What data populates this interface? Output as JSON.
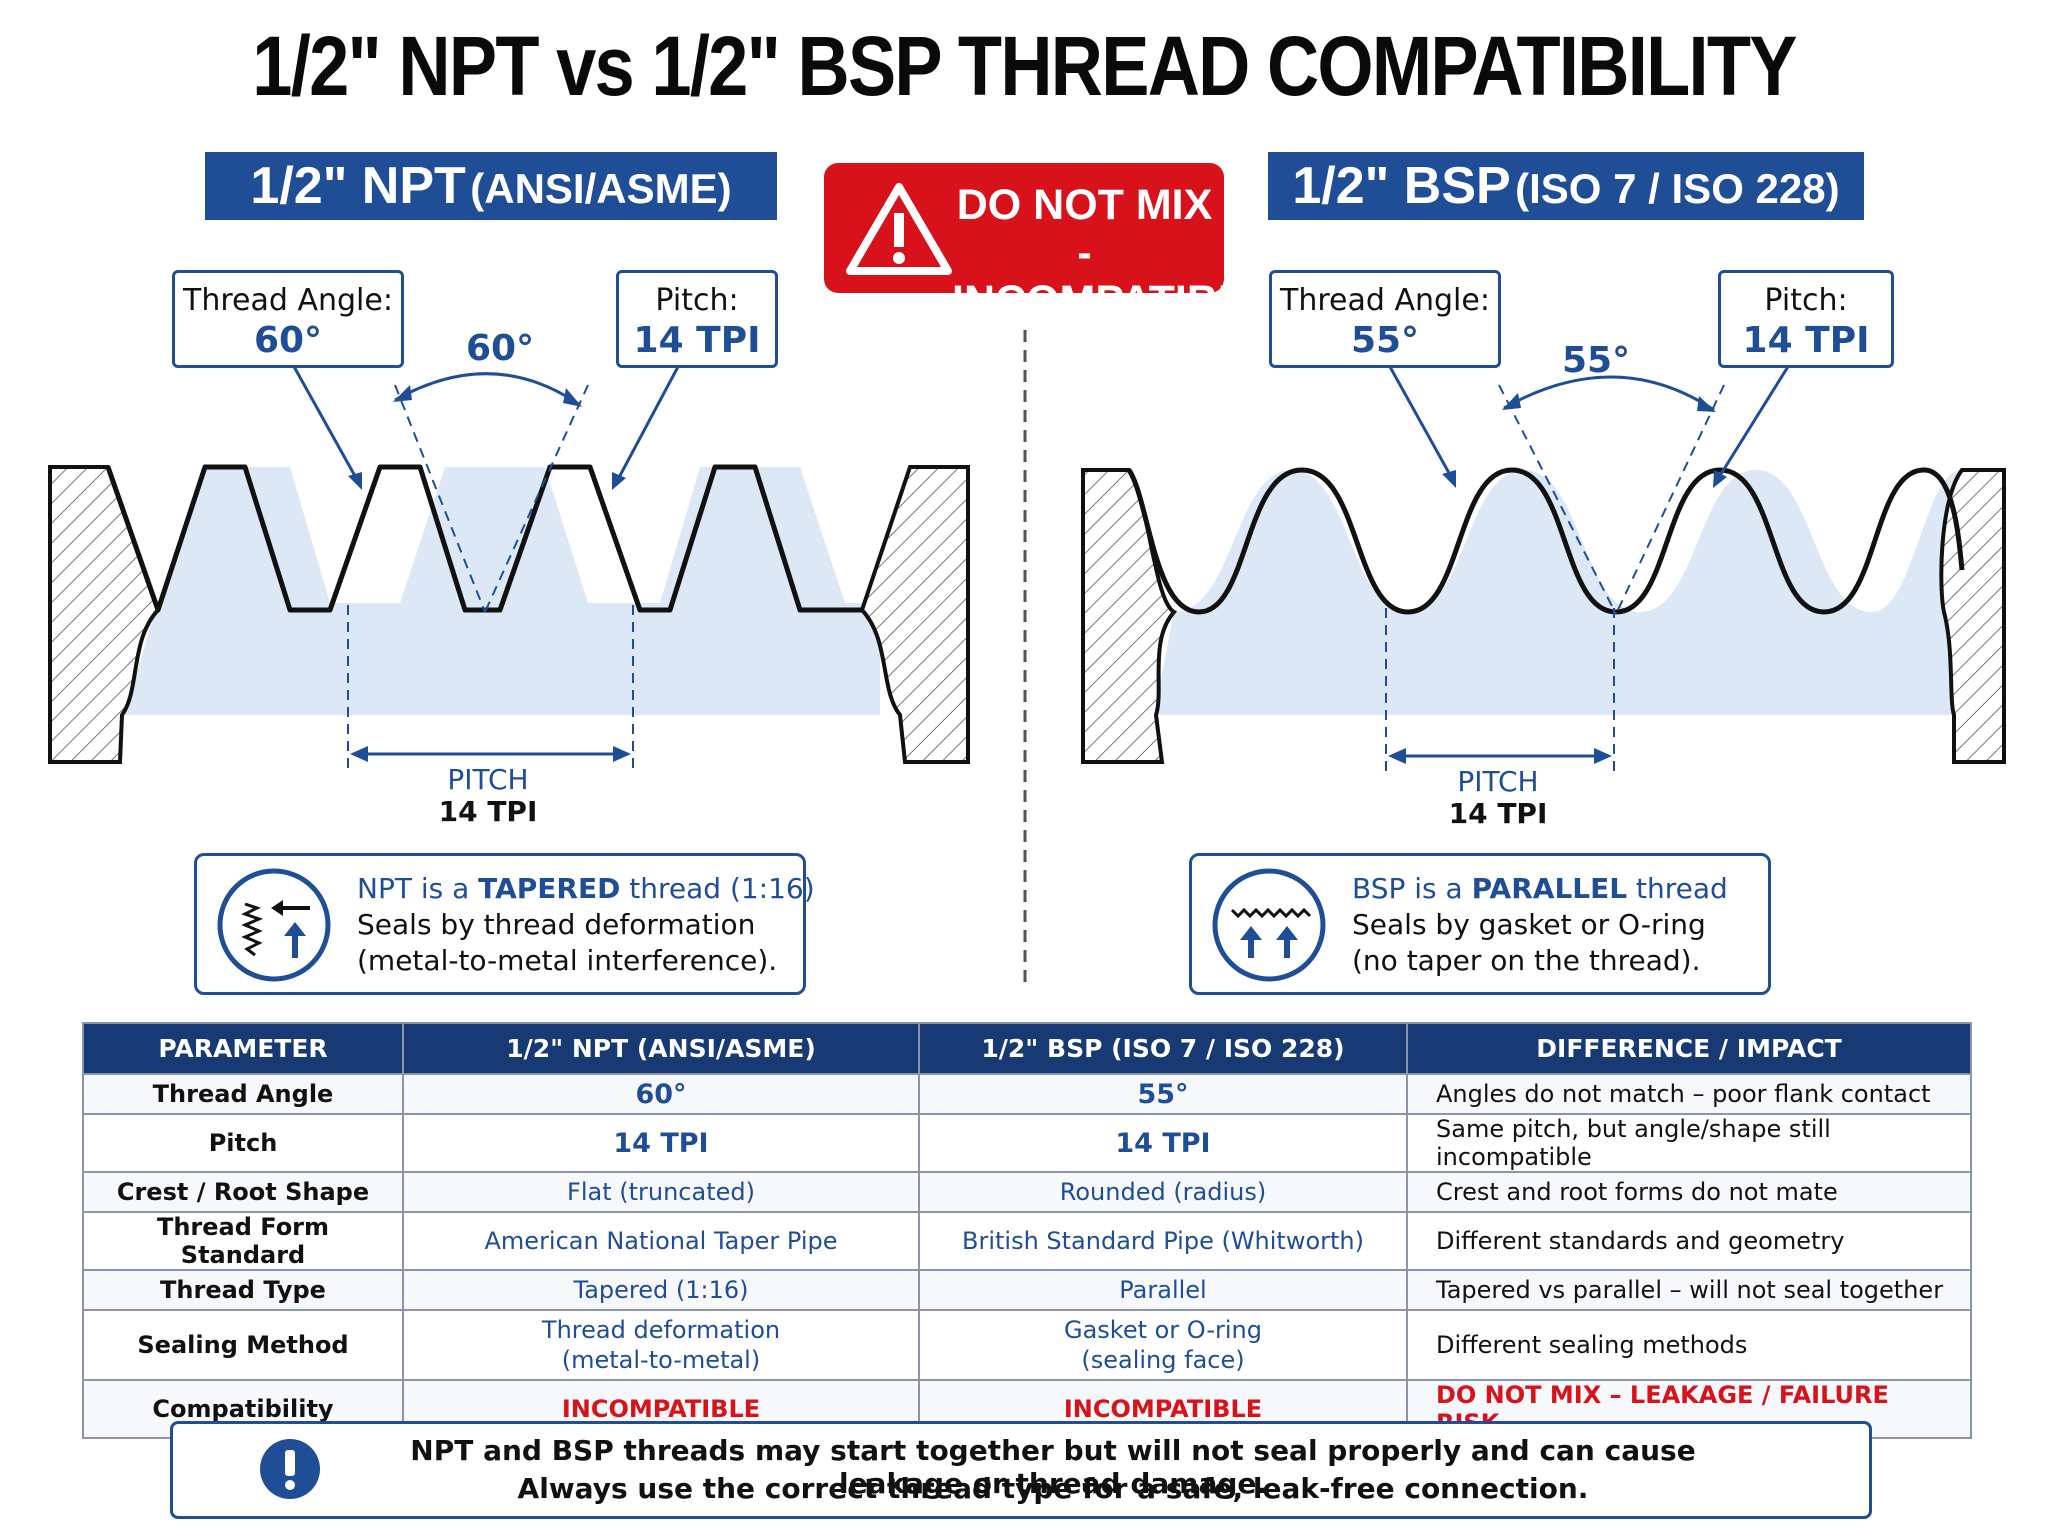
{
  "title": "1/2\" NPT vs 1/2\" BSP THREAD COMPATIBILITY",
  "npt_header": {
    "main": "1/2\" NPT",
    "sub": "(ANSI/ASME)"
  },
  "bsp_header": {
    "main": "1/2\" BSP",
    "sub": "(ISO 7 / ISO 228)"
  },
  "warning": {
    "line1": "DO NOT MIX -",
    "line2": "INCOMPATIBLE!"
  },
  "npt": {
    "angle_label": "Thread Angle:",
    "angle_value": "60°",
    "pitch_label": "Pitch:",
    "pitch_value": "14 TPI",
    "angle_marker": "60°",
    "pitch_dim_label": "PITCH",
    "pitch_dim_value": "14 TPI",
    "note_bold_prefix": "NPT is a ",
    "note_bold": "TAPERED",
    "note_tail": " thread (1:16)",
    "note_line2": "Seals by thread deformation",
    "note_line3": "(metal-to-metal interference)."
  },
  "bsp": {
    "angle_label": "Thread Angle:",
    "angle_value": "55°",
    "pitch_label": "Pitch:",
    "pitch_value": "14 TPI",
    "angle_marker": "55°",
    "pitch_dim_label": "PITCH",
    "pitch_dim_value": "14 TPI",
    "note_bold_prefix": "BSP is a ",
    "note_bold": "PARALLEL",
    "note_tail": " thread",
    "note_line2": "Seals by gasket or O-ring",
    "note_line3": "(no taper on the thread)."
  },
  "table": {
    "headers": [
      "PARAMETER",
      "1/2\" NPT (ANSI/ASME)",
      "1/2\" BSP (ISO 7 / ISO 228)",
      "DIFFERENCE / IMPACT"
    ],
    "rows": [
      [
        "Thread Angle",
        "60°",
        "55°",
        "Angles do not match – poor flank contact"
      ],
      [
        "Pitch",
        "14 TPI",
        "14 TPI",
        "Same pitch, but angle/shape still incompatible"
      ],
      [
        "Crest / Root Shape",
        "Flat (truncated)",
        "Rounded (radius)",
        "Crest and root forms do not mate"
      ],
      [
        "Thread Form Standard",
        "American National Taper Pipe",
        "British Standard Pipe (Whitworth)",
        "Different standards and geometry"
      ],
      [
        "Thread Type",
        "Tapered  (1:16)",
        "Parallel",
        "Tapered vs parallel – will not seal together"
      ],
      [
        "Sealing Method",
        "Thread deformation",
        "Gasket or O-ring",
        "Different sealing methods"
      ],
      [
        "Compatibility",
        "INCOMPATIBLE",
        "INCOMPATIBLE",
        "DO NOT MIX – LEAKAGE / FAILURE RISK"
      ]
    ],
    "sealing_sub": [
      "(metal-to-metal)",
      "(sealing face)"
    ]
  },
  "footer": {
    "line1": "NPT and BSP threads may start together but will not seal properly and can cause leakage or thread damage.",
    "line2": "Always use the correct thread type for a safe, leak-free connection."
  },
  "colors": {
    "blue": "#1f4e96",
    "navy": "#173a75",
    "red": "#d8121b",
    "fill": "#dce8f5"
  }
}
